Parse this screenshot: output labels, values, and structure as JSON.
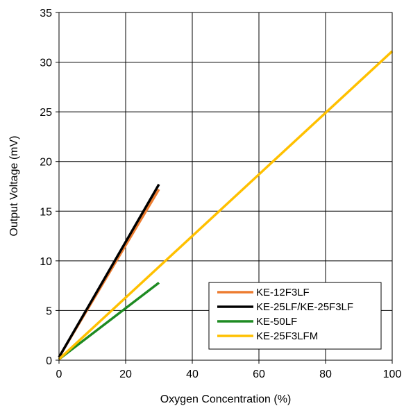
{
  "chart_data": {
    "type": "line",
    "xlabel": "Oxygen Concentration (%)",
    "ylabel": "Output Voltage (mV)",
    "xlim": [
      0,
      100
    ],
    "ylim": [
      0,
      35
    ],
    "x_ticks": [
      "0",
      "20",
      "40",
      "60",
      "80",
      "100"
    ],
    "y_ticks": [
      "0",
      "5",
      "10",
      "15",
      "20",
      "25",
      "30",
      "35"
    ],
    "grid": true,
    "legend_position": "bottom-right",
    "series": [
      {
        "name": "KE-12F3LF",
        "color": "#ed7d31",
        "x": [
          0,
          30
        ],
        "y": [
          0.3,
          17.2
        ]
      },
      {
        "name": "KE-25LF/KE-25F3LF",
        "color": "#000000",
        "x": [
          0,
          30
        ],
        "y": [
          0.3,
          17.7
        ]
      },
      {
        "name": "KE-50LF",
        "color": "#1e8b22",
        "x": [
          0,
          30
        ],
        "y": [
          0.1,
          7.8
        ]
      },
      {
        "name": "KE-25F3LFM",
        "color": "#ffc000",
        "x": [
          0,
          100
        ],
        "y": [
          0.1,
          31.1
        ]
      }
    ]
  }
}
